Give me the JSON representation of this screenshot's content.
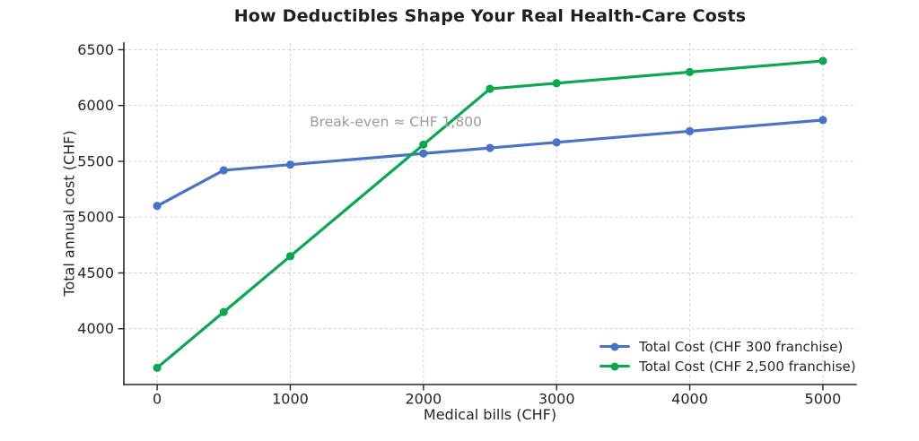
{
  "chart_data": {
    "type": "line",
    "title": "How Deductibles Shape Your Real Health-Care Costs",
    "xlabel": "Medical bills (CHF)",
    "ylabel": "Total annual cost (CHF)",
    "x": [
      0,
      500,
      1000,
      2000,
      2500,
      3000,
      4000,
      5000
    ],
    "series": [
      {
        "name": "Total Cost (CHF 300 franchise)",
        "color": "#4a73c8",
        "values": [
          5100,
          5420,
          5470,
          5570,
          5620,
          5670,
          5770,
          5870
        ]
      },
      {
        "name": "Total Cost (CHF 2,500 franchise)",
        "color": "#0ca750",
        "values": [
          3650,
          4150,
          4650,
          5650,
          6150,
          6200,
          6300,
          6400
        ]
      }
    ],
    "xticks": [
      0,
      1000,
      2000,
      3000,
      4000,
      5000
    ],
    "yticks": [
      4000,
      4500,
      5000,
      5500,
      6000,
      6500
    ],
    "xlim": [
      -250,
      5250
    ],
    "ylim": [
      3500,
      6560
    ],
    "grid": true,
    "grid_style": "dashed",
    "legend_position": "lower right",
    "annotation": {
      "text": "Break-even ≈ CHF 1,800",
      "color": "#9b9b9b"
    },
    "colors": {
      "spine": "#262626",
      "tick_label": "#262626",
      "grid": "#cdcdcd",
      "background": "#ffffff"
    }
  }
}
